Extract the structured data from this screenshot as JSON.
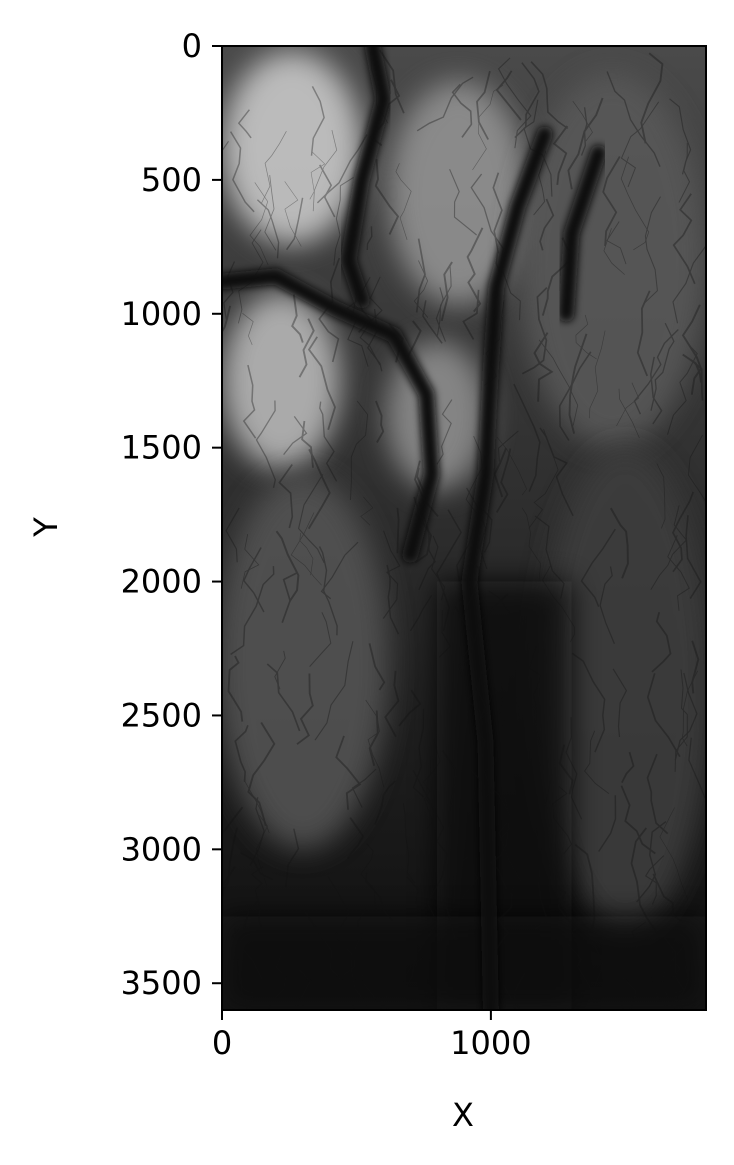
{
  "chart_data": {
    "type": "heatmap",
    "title": "",
    "xlabel": "X",
    "ylabel": "Y",
    "xlim": [
      0,
      1800
    ],
    "ylim": [
      3600,
      0
    ],
    "x_ticks": [
      0,
      1000
    ],
    "x_tick_labels": [
      "0",
      "1000"
    ],
    "y_ticks": [
      0,
      500,
      1000,
      1500,
      2000,
      2500,
      3000,
      3500
    ],
    "y_tick_labels": [
      "0",
      "500",
      "1000",
      "1500",
      "2000",
      "2500",
      "3000",
      "3500"
    ],
    "colormap": "gray",
    "description_of_field": "elevation-like raster; bright plateaus in upper-left, dark river valleys through center, dark lower region",
    "channels": [
      {
        "name": "river-west",
        "points": [
          [
            0,
            880
          ],
          [
            200,
            860
          ],
          [
            420,
            980
          ],
          [
            640,
            1080
          ],
          [
            760,
            1300
          ],
          [
            780,
            1600
          ],
          [
            700,
            1900
          ]
        ]
      },
      {
        "name": "river-upper",
        "points": [
          [
            560,
            0
          ],
          [
            600,
            200
          ],
          [
            520,
            500
          ],
          [
            470,
            800
          ],
          [
            520,
            950
          ]
        ]
      },
      {
        "name": "river-main",
        "points": [
          [
            1200,
            330
          ],
          [
            1100,
            600
          ],
          [
            1020,
            900
          ],
          [
            1000,
            1200
          ],
          [
            980,
            1600
          ],
          [
            920,
            2000
          ],
          [
            980,
            2600
          ],
          [
            1000,
            3600
          ]
        ]
      },
      {
        "name": "river-east",
        "points": [
          [
            1400,
            400
          ],
          [
            1300,
            700
          ],
          [
            1280,
            1000
          ]
        ]
      }
    ],
    "bright_regions": [
      {
        "name": "plateau-nw",
        "cx": 260,
        "cy": 380,
        "rx": 260,
        "ry": 360,
        "level": 0.85
      },
      {
        "name": "plateau-n",
        "cx": 880,
        "cy": 550,
        "rx": 260,
        "ry": 420,
        "level": 0.62
      },
      {
        "name": "plateau-w",
        "cx": 220,
        "cy": 1250,
        "rx": 220,
        "ry": 330,
        "level": 0.78
      },
      {
        "name": "plateau-c",
        "cx": 800,
        "cy": 1380,
        "rx": 190,
        "ry": 280,
        "level": 0.6
      },
      {
        "name": "plateau-ne",
        "cx": 1450,
        "cy": 800,
        "rx": 350,
        "ry": 700,
        "level": 0.38
      },
      {
        "name": "slope-w",
        "cx": 300,
        "cy": 2300,
        "rx": 320,
        "ry": 700,
        "level": 0.35
      },
      {
        "name": "slope-e",
        "cx": 1500,
        "cy": 2400,
        "rx": 320,
        "ry": 900,
        "level": 0.26
      }
    ]
  }
}
